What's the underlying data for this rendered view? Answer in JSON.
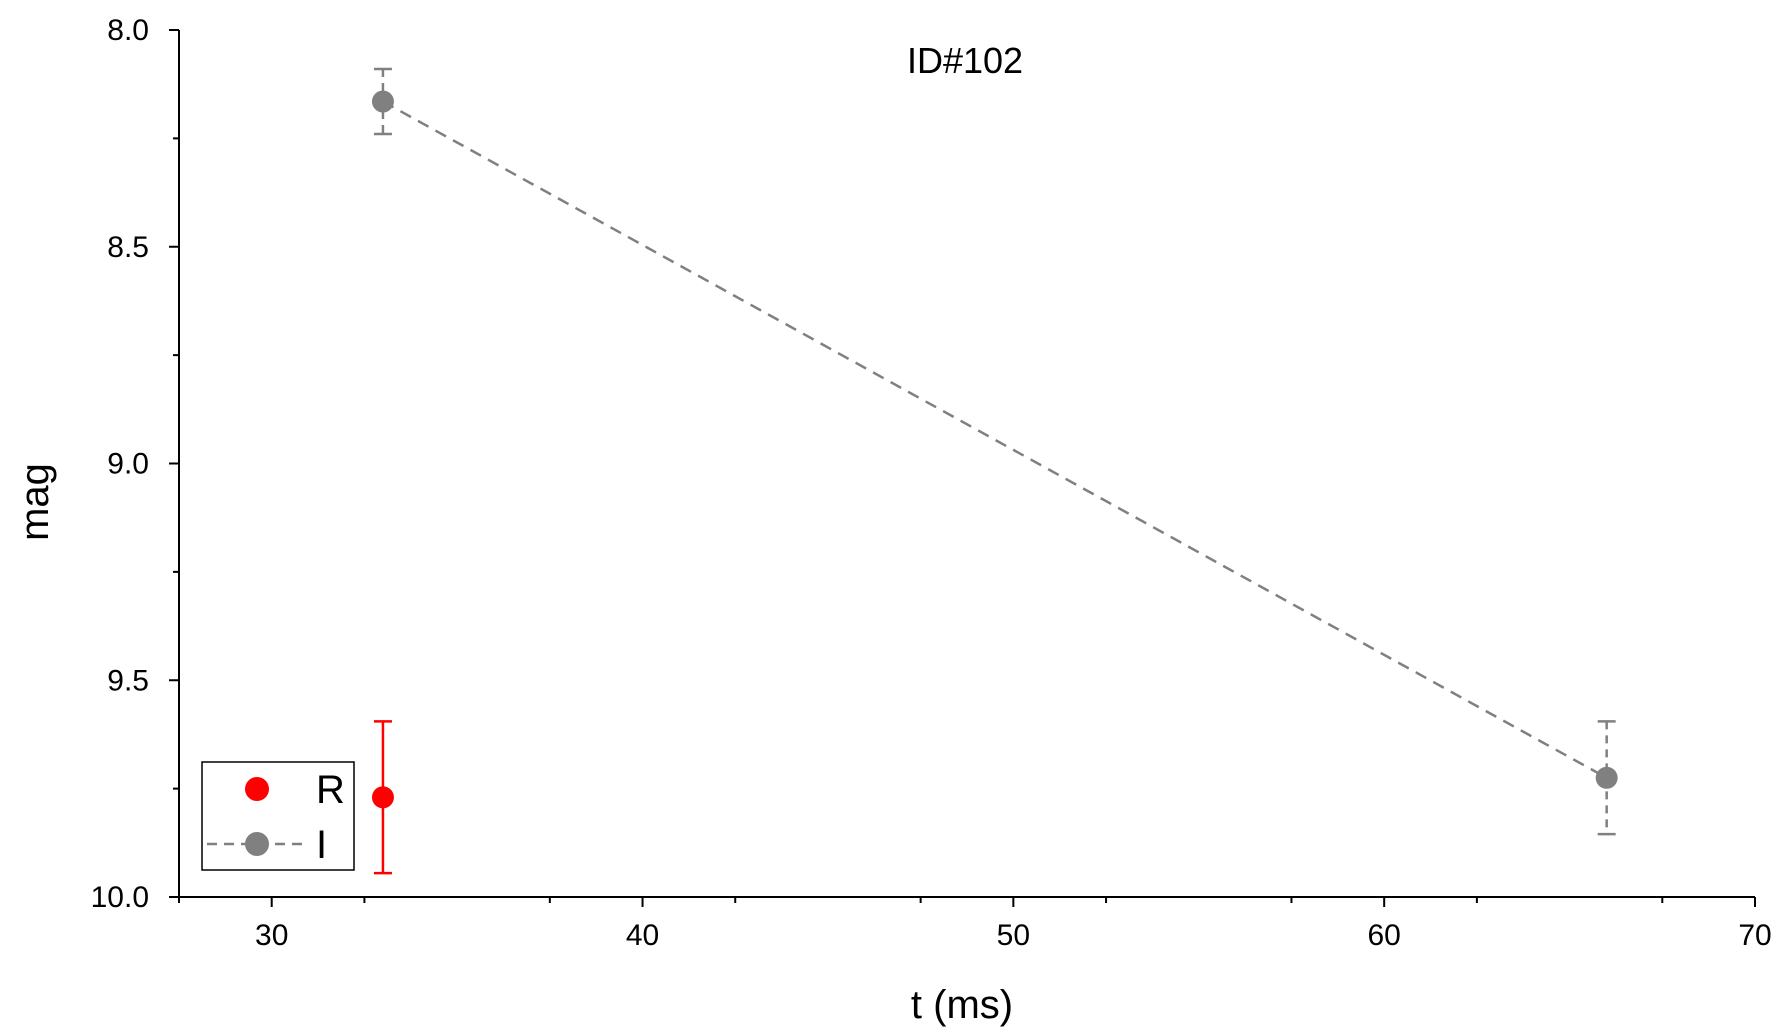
{
  "chart_data": {
    "type": "scatter",
    "title": "ID#102",
    "xlabel": "t (ms)",
    "ylabel": "mag",
    "xlim": [
      27.5,
      70
    ],
    "ylim": [
      10.0,
      8.0
    ],
    "y_inverted": true,
    "x_ticks": [
      30,
      40,
      50,
      60,
      70
    ],
    "x_tick_labels": [
      "30",
      "40",
      "50",
      "60",
      "70"
    ],
    "y_ticks": [
      8.0,
      8.5,
      9.0,
      9.5,
      10.0
    ],
    "y_tick_labels": [
      "8.0",
      "8.5",
      "9.0",
      "9.5",
      "10.0"
    ],
    "grid": false,
    "legend_position": "bottom-left",
    "series": [
      {
        "name": "R",
        "color": "#ff0000",
        "line": "none",
        "points": [
          {
            "x": 33.0,
            "y": 9.77,
            "err": 0.175
          }
        ]
      },
      {
        "name": "I",
        "color": "#808080",
        "line": "dashed",
        "points": [
          {
            "x": 33.0,
            "y": 8.165,
            "err": 0.075
          },
          {
            "x": 66.0,
            "y": 9.725,
            "err": 0.13
          }
        ]
      }
    ]
  }
}
